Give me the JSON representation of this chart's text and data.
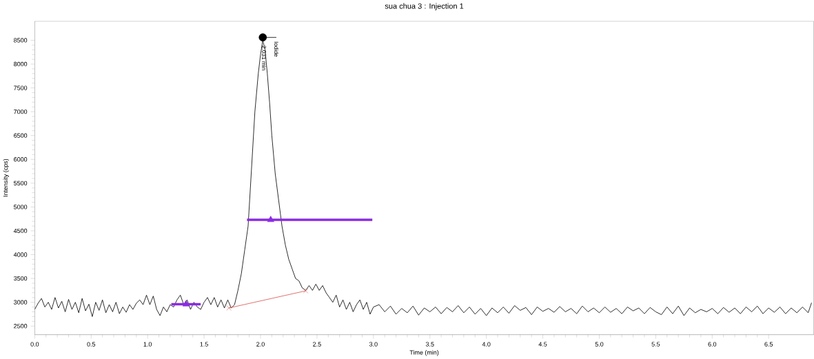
{
  "chart_data": {
    "type": "line",
    "title": "sua chua 3 : Injection 1",
    "xlabel": "Time (min)",
    "ylabel": "Intensity (cps)",
    "xlim": [
      0,
      6.9
    ],
    "ylim": [
      2320,
      8900
    ],
    "xticks": [
      {
        "value": 0,
        "label": "0.0"
      },
      0.5,
      {
        "value": 1,
        "label": "1.0"
      },
      1.5,
      {
        "value": 2,
        "label": "2.0"
      },
      2.5,
      {
        "value": 3,
        "label": "3.0"
      },
      3.5,
      {
        "value": 4,
        "label": "4.0"
      },
      4.5,
      {
        "value": 5,
        "label": "5.0"
      },
      5.5,
      {
        "value": 6,
        "label": "6.0"
      },
      6.5
    ],
    "yticks": [
      2500,
      3000,
      3500,
      4000,
      4500,
      5000,
      5500,
      6000,
      6500,
      7000,
      7500,
      8000,
      8500
    ],
    "grid": false,
    "line_style": "solid",
    "marker": "none",
    "annotations": [
      {
        "text": "2.031 min",
        "x": 2.031,
        "y": 8555
      },
      {
        "text": "Iodide",
        "x": 2.14,
        "y": 8560
      }
    ],
    "series": [
      {
        "color": "#000000",
        "x": [
          0.0,
          0.03,
          0.06,
          0.09,
          0.12,
          0.15,
          0.18,
          0.21,
          0.24,
          0.27,
          0.3,
          0.33,
          0.36,
          0.39,
          0.42,
          0.45,
          0.48,
          0.51,
          0.54,
          0.57,
          0.6,
          0.63,
          0.66,
          0.69,
          0.72,
          0.75,
          0.78,
          0.81,
          0.84,
          0.87,
          0.9,
          0.93,
          0.96,
          0.99,
          1.02,
          1.05,
          1.08,
          1.11,
          1.14,
          1.17,
          1.2,
          1.23,
          1.26,
          1.29,
          1.32,
          1.35,
          1.38,
          1.41,
          1.44,
          1.47,
          1.5,
          1.53,
          1.56,
          1.59,
          1.62,
          1.65,
          1.68,
          1.71,
          1.74,
          1.77,
          1.8,
          1.83,
          1.86,
          1.89,
          1.92,
          1.95,
          1.98,
          2.0,
          2.02,
          2.04,
          2.06,
          2.08,
          2.1,
          2.13,
          2.16,
          2.19,
          2.22,
          2.25,
          2.28,
          2.31,
          2.34,
          2.37,
          2.4,
          2.43,
          2.46,
          2.49,
          2.52,
          2.55,
          2.58,
          2.61,
          2.64,
          2.67,
          2.7,
          2.73,
          2.76,
          2.79,
          2.82,
          2.85,
          2.88,
          2.91,
          2.94,
          2.97,
          3.0,
          3.05,
          3.1,
          3.15,
          3.2,
          3.25,
          3.3,
          3.35,
          3.4,
          3.45,
          3.5,
          3.55,
          3.6,
          3.65,
          3.7,
          3.75,
          3.8,
          3.85,
          3.9,
          3.95,
          4.0,
          4.05,
          4.1,
          4.15,
          4.2,
          4.25,
          4.3,
          4.35,
          4.4,
          4.45,
          4.5,
          4.55,
          4.6,
          4.65,
          4.7,
          4.75,
          4.8,
          4.85,
          4.9,
          4.95,
          5.0,
          5.05,
          5.1,
          5.15,
          5.2,
          5.25,
          5.3,
          5.35,
          5.4,
          5.45,
          5.5,
          5.55,
          5.6,
          5.65,
          5.7,
          5.75,
          5.8,
          5.85,
          5.9,
          5.95,
          6.0,
          6.05,
          6.1,
          6.15,
          6.2,
          6.25,
          6.3,
          6.35,
          6.4,
          6.45,
          6.5,
          6.55,
          6.6,
          6.65,
          6.7,
          6.75,
          6.8,
          6.85,
          6.88
        ],
        "values": [
          2850,
          2980,
          3080,
          2900,
          3000,
          2850,
          3100,
          2880,
          3020,
          2800,
          3060,
          2850,
          3000,
          2780,
          3080,
          2820,
          2960,
          2700,
          3000,
          2830,
          3050,
          2780,
          2950,
          2800,
          3000,
          2760,
          2900,
          2790,
          2950,
          2850,
          2980,
          3050,
          2950,
          3150,
          2950,
          3130,
          2850,
          2720,
          2900,
          2800,
          2950,
          2900,
          3050,
          3150,
          2950,
          3050,
          2850,
          3000,
          2900,
          2850,
          3000,
          3100,
          2950,
          3100,
          2900,
          3050,
          2880,
          3050,
          2880,
          2950,
          3250,
          3600,
          4100,
          4600,
          5800,
          7000,
          7800,
          8200,
          8500,
          8300,
          7800,
          7200,
          6500,
          5700,
          5150,
          4600,
          4200,
          3900,
          3700,
          3500,
          3450,
          3300,
          3250,
          3350,
          3250,
          3380,
          3250,
          3350,
          3200,
          3100,
          3000,
          3150,
          2900,
          3050,
          2850,
          3000,
          2800,
          2950,
          3050,
          2850,
          3000,
          2750,
          2900,
          2950,
          2800,
          2920,
          2750,
          2870,
          2780,
          2920,
          2730,
          2880,
          2800,
          2900,
          2760,
          2890,
          2800,
          2930,
          2780,
          2900,
          2750,
          2870,
          2720,
          2880,
          2780,
          2900,
          2770,
          2930,
          2830,
          2890,
          2740,
          2900,
          2810,
          2870,
          2790,
          2910,
          2800,
          2870,
          2760,
          2920,
          2800,
          2880,
          2780,
          2900,
          2790,
          2870,
          2760,
          2900,
          2820,
          2880,
          2760,
          2890,
          2800,
          2740,
          2900,
          2760,
          2920,
          2720,
          2880,
          2780,
          2850,
          2800,
          2870,
          2760,
          2890,
          2790,
          2880,
          2760,
          2900,
          2800,
          2920,
          2760,
          2880,
          2790,
          2900,
          2760,
          2880,
          2780,
          2900,
          2780,
          2990
        ]
      },
      {
        "color": "#8a2be2",
        "x": [
          1.88,
          2.99
        ],
        "values": [
          4730,
          4730
        ]
      },
      {
        "type": "scatter",
        "color": "#8a2be2",
        "marker": "triangle",
        "x": [
          2.09
        ],
        "values": [
          4730
        ]
      },
      {
        "color": "#8a2be2",
        "x": [
          1.21,
          1.47
        ],
        "values": [
          2960,
          2960
        ]
      },
      {
        "type": "scatter",
        "color": "#8a2be2",
        "marker": "triangle",
        "x": [
          1.34
        ],
        "values": [
          2960
        ]
      },
      {
        "color": "#d9534f",
        "marker": "cross",
        "x": [
          1.72,
          2.4
        ],
        "values": [
          2880,
          3240
        ]
      },
      {
        "color": "#000000",
        "x": [
          2.02,
          2.14
        ],
        "values": [
          8560,
          8560
        ]
      },
      {
        "type": "scatter",
        "color": "#000000",
        "marker": "circle",
        "x": [
          2.02
        ],
        "values": [
          8560
        ]
      }
    ]
  }
}
